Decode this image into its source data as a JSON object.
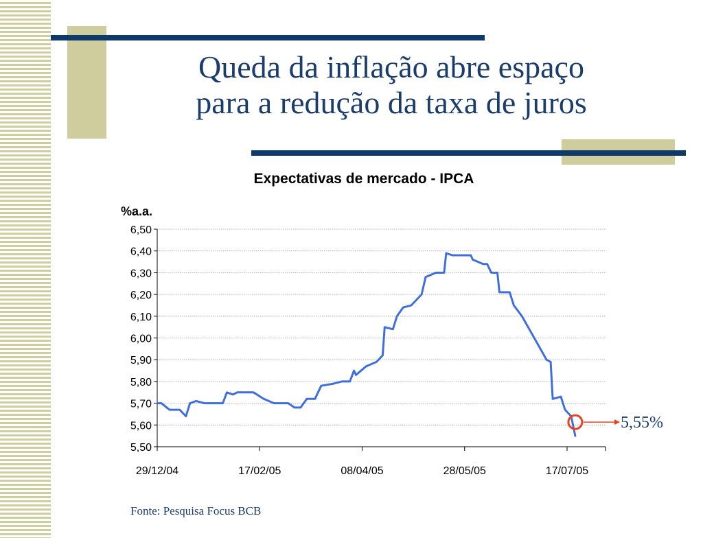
{
  "slide": {
    "title_line1": "Queda da inflação abre espaço",
    "title_line2": "para a redução da taxa de juros",
    "source": "Fonte: Pesquisa Focus BCB"
  },
  "colors": {
    "navy": "#0e3a6b",
    "khaki": "#cfcc9e",
    "series": "#3f6fdc",
    "highlight": "#e8431f"
  },
  "chart_data": {
    "type": "line",
    "title": "Expectativas de mercado - IPCA",
    "ylabel": "%a.a.",
    "ylim": [
      5.5,
      6.5
    ],
    "yticks": [
      "6,50",
      "6,40",
      "6,30",
      "6,20",
      "6,10",
      "6,00",
      "5,90",
      "5,80",
      "5,70",
      "5,60",
      "5,50"
    ],
    "xticks": [
      "29/12/04",
      "17/02/05",
      "08/04/05",
      "28/05/05",
      "17/07/05"
    ],
    "grid": true,
    "series": [
      {
        "values": [
          [
            "29/12/04",
            5.7
          ],
          [
            "31/12/04",
            5.7
          ],
          [
            "04/01/05",
            5.67
          ],
          [
            "09/01/05",
            5.67
          ],
          [
            "12/01/05",
            5.64
          ],
          [
            "14/01/05",
            5.7
          ],
          [
            "17/01/05",
            5.71
          ],
          [
            "21/01/05",
            5.7
          ],
          [
            "30/01/05",
            5.7
          ],
          [
            "01/02/05",
            5.75
          ],
          [
            "04/02/05",
            5.74
          ],
          [
            "06/02/05",
            5.75
          ],
          [
            "14/02/05",
            5.75
          ],
          [
            "19/02/05",
            5.72
          ],
          [
            "24/02/05",
            5.7
          ],
          [
            "03/03/05",
            5.7
          ],
          [
            "06/03/05",
            5.68
          ],
          [
            "09/03/05",
            5.68
          ],
          [
            "12/03/05",
            5.72
          ],
          [
            "16/03/05",
            5.72
          ],
          [
            "19/03/05",
            5.78
          ],
          [
            "25/03/05",
            5.79
          ],
          [
            "29/03/05",
            5.8
          ],
          [
            "02/04/05",
            5.8
          ],
          [
            "04/04/05",
            5.85
          ],
          [
            "05/04/05",
            5.83
          ],
          [
            "10/04/05",
            5.87
          ],
          [
            "15/04/05",
            5.89
          ],
          [
            "18/04/05",
            5.92
          ],
          [
            "19/04/05",
            6.05
          ],
          [
            "23/04/05",
            6.04
          ],
          [
            "25/04/05",
            6.1
          ],
          [
            "28/04/05",
            6.14
          ],
          [
            "02/05/05",
            6.15
          ],
          [
            "07/05/05",
            6.2
          ],
          [
            "09/05/05",
            6.28
          ],
          [
            "14/05/05",
            6.3
          ],
          [
            "18/05/05",
            6.3
          ],
          [
            "19/05/05",
            6.39
          ],
          [
            "22/05/05",
            6.38
          ],
          [
            "31/05/05",
            6.38
          ],
          [
            "01/06/05",
            6.36
          ],
          [
            "06/06/05",
            6.34
          ],
          [
            "08/06/05",
            6.34
          ],
          [
            "10/06/05",
            6.3
          ],
          [
            "13/06/05",
            6.3
          ],
          [
            "14/06/05",
            6.21
          ],
          [
            "19/06/05",
            6.21
          ],
          [
            "21/06/05",
            6.15
          ],
          [
            "25/06/05",
            6.1
          ],
          [
            "01/07/05",
            6.0
          ],
          [
            "07/07/05",
            5.9
          ],
          [
            "09/07/05",
            5.89
          ],
          [
            "10/07/05",
            5.72
          ],
          [
            "14/07/05",
            5.73
          ],
          [
            "16/07/05",
            5.67
          ],
          [
            "19/07/05",
            5.64
          ],
          [
            "21/07/05",
            5.55
          ]
        ]
      }
    ],
    "annotations": [
      {
        "text": "5,55%",
        "x": "21/07/05",
        "y": 5.55
      }
    ]
  }
}
